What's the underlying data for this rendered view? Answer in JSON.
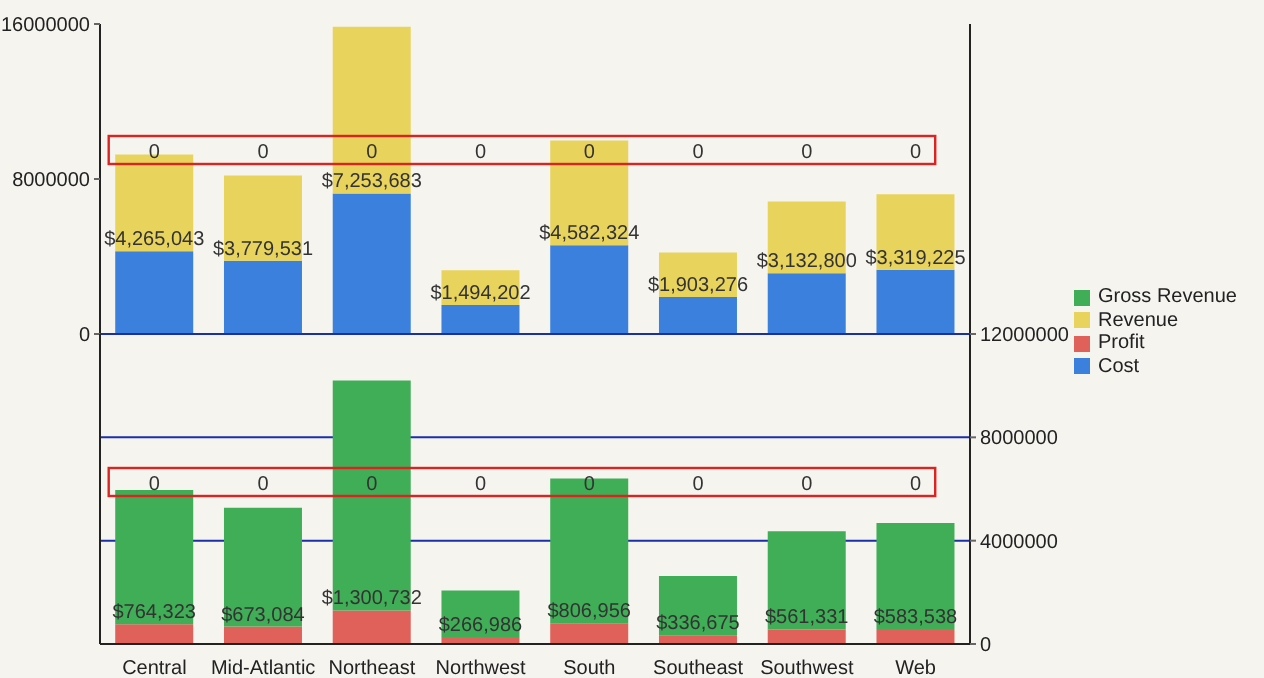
{
  "chart_data": [
    {
      "type": "bar",
      "stacked": true,
      "categories": [
        null,
        null,
        null,
        null,
        null,
        null,
        null,
        null
      ],
      "ylim": [
        0,
        16000000
      ],
      "yticks": [
        0,
        8000000,
        16000000
      ],
      "tick_labels": "y",
      "legend": "right",
      "series": [
        {
          "name": "Cost",
          "color": "#3a80dc",
          "values": [
            4265043,
            3779531,
            7253683,
            1494202,
            4582324,
            1903276,
            3132800,
            3319225
          ],
          "value_labels": [
            "$4,265,043",
            "$3,779,531",
            "$7,253,683",
            "$1,494,202",
            "$4,582,324",
            "$1,903,276",
            "$3,132,800",
            "$3,319,225"
          ]
        },
        {
          "name": "Revenue",
          "color": "#e8d35c",
          "values": [
            5000000,
            4400000,
            8600000,
            1800000,
            5400000,
            2300000,
            3700000,
            3900000
          ]
        }
      ],
      "annotations": [
        "0",
        "0",
        "0",
        "0",
        "0",
        "0",
        "0",
        "0"
      ]
    },
    {
      "type": "bar",
      "stacked": true,
      "categories": [
        "Central",
        "Mid-Atlantic",
        "Northeast",
        "Northwest",
        "South",
        "Southeast",
        "Southwest",
        "Web"
      ],
      "y2lim": [
        0,
        12000000
      ],
      "y2ticks": [
        0,
        4000000,
        8000000,
        12000000
      ],
      "grid": "y",
      "legend": "right",
      "series": [
        {
          "name": "Profit",
          "color": "#e0605a",
          "axis": "y2",
          "values": [
            764323,
            673084,
            1300732,
            266986,
            806956,
            336675,
            561331,
            583538
          ],
          "value_labels": [
            "$764,323",
            "$673,084",
            "$1,300,732",
            "$266,986",
            "$806,956",
            "$336,675",
            "$561,331",
            "$583,538"
          ]
        },
        {
          "name": "Gross Revenue",
          "color": "#40ae56",
          "axis": "y2",
          "values": [
            5200000,
            4600000,
            8900000,
            1800000,
            5600000,
            2300000,
            3800000,
            4100000
          ]
        }
      ],
      "annotations": [
        "0",
        "0",
        "0",
        "0",
        "0",
        "0",
        "0",
        "0"
      ]
    }
  ]
}
